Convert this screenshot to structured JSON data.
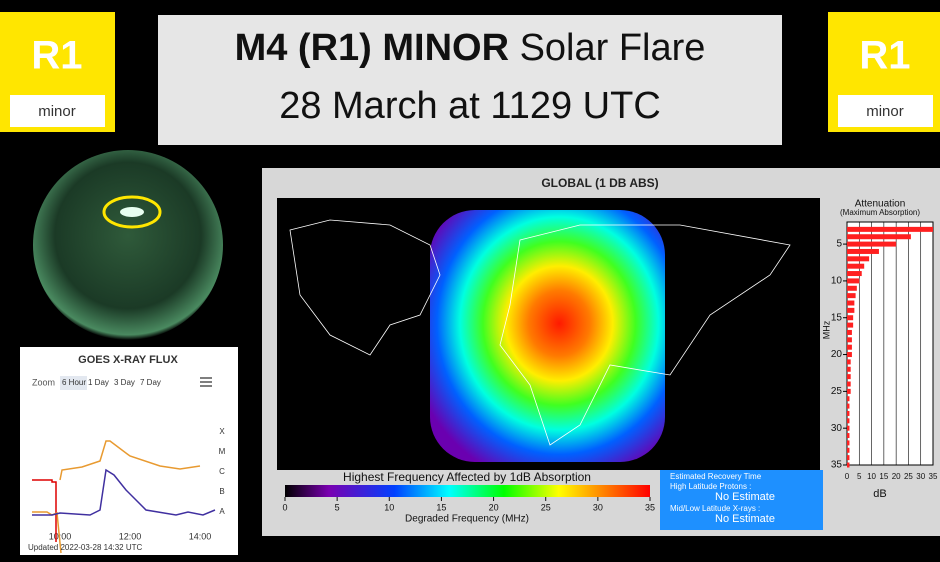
{
  "badges": [
    {
      "code": "R1",
      "level": "minor"
    },
    {
      "code": "R1",
      "level": "minor"
    }
  ],
  "header": {
    "bold": "M4 (R1) MINOR",
    "rest": "Solar Flare",
    "line2": "28 March at 1129 UTC"
  },
  "xray": {
    "title": "GOES X-RAY FLUX",
    "zoom_label": "Zoom",
    "zoom_options": [
      "6 Hour",
      "1 Day",
      "3 Day",
      "7 Day"
    ],
    "classes": [
      "X",
      "M",
      "C",
      "B",
      "A"
    ],
    "times": [
      "10:00",
      "12:00",
      "14:00"
    ],
    "updated": "Updated 2022-03-28 14:32 UTC"
  },
  "drap": {
    "title": "GLOBAL (1 DB ABS)",
    "colorbar_title": "Highest Frequency Affected by 1dB Absorption",
    "colorbar_ticks": [
      0,
      5,
      10,
      15,
      20,
      25,
      30,
      35
    ],
    "colorbar_label": "Degraded Frequency (MHz)",
    "recovery": {
      "title": "Estimated Recovery Time",
      "items": [
        {
          "label": "High Latitude Protons :",
          "value": "No Estimate"
        },
        {
          "label": "Mid/Low Latitude X-rays :",
          "value": "No Estimate"
        }
      ]
    },
    "attenuation": {
      "title": "Attenuation",
      "subtitle": "(Maximum Absorption)",
      "y_label": "MHz",
      "x_label": "dB",
      "yticks": [
        5,
        10,
        15,
        20,
        25,
        30,
        35
      ],
      "xticks": [
        0,
        5,
        10,
        15,
        20,
        25,
        30,
        35
      ],
      "xlim": [
        0,
        35
      ],
      "ylim": [
        2,
        35
      ],
      "frequencies": [
        3,
        4,
        5,
        6,
        7,
        8,
        9,
        10,
        11,
        12,
        13,
        14,
        15,
        16,
        17,
        18,
        19,
        20,
        21,
        22,
        23,
        24,
        25,
        26,
        27,
        28,
        29,
        30,
        31,
        32,
        33,
        34,
        35
      ],
      "values": [
        35,
        26,
        20,
        13,
        9,
        7,
        6,
        5,
        4,
        3.5,
        3,
        3,
        2.5,
        2.5,
        2,
        2,
        2,
        2,
        1.5,
        1.5,
        1.5,
        1.5,
        1.5,
        1,
        1,
        1,
        1,
        1,
        1,
        1,
        1,
        1,
        1
      ]
    }
  }
}
